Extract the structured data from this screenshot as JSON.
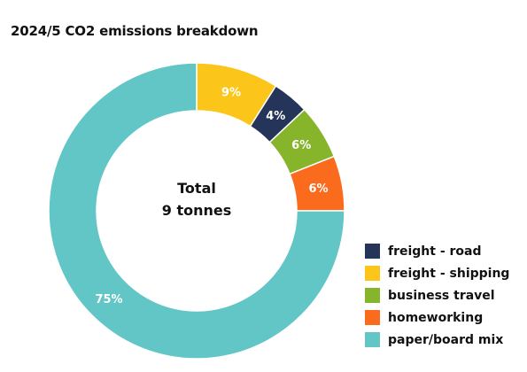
{
  "chart_data": {
    "type": "pie",
    "donut": true,
    "title": "2024/5 CO2 emissions breakdown",
    "center_label": [
      "Total",
      "9 tonnes"
    ],
    "slices": [
      {
        "name": "freight - road",
        "value": 4,
        "label": "4%",
        "color": "#25355a"
      },
      {
        "name": "freight - shipping",
        "value": 9,
        "label": "9%",
        "color": "#fcc519"
      },
      {
        "name": "business travel",
        "value": 6,
        "label": "6%",
        "color": "#86b42b"
      },
      {
        "name": "homeworking",
        "value": 6,
        "label": "6%",
        "color": "#fb6b1d"
      },
      {
        "name": "paper/board mix",
        "value": 75,
        "label": "75%",
        "color": "#62c5c6"
      }
    ],
    "draw_order": [
      "freight - shipping",
      "freight - road",
      "business travel",
      "homeworking",
      "paper/board mix"
    ],
    "legend_position": "bottom-right"
  }
}
